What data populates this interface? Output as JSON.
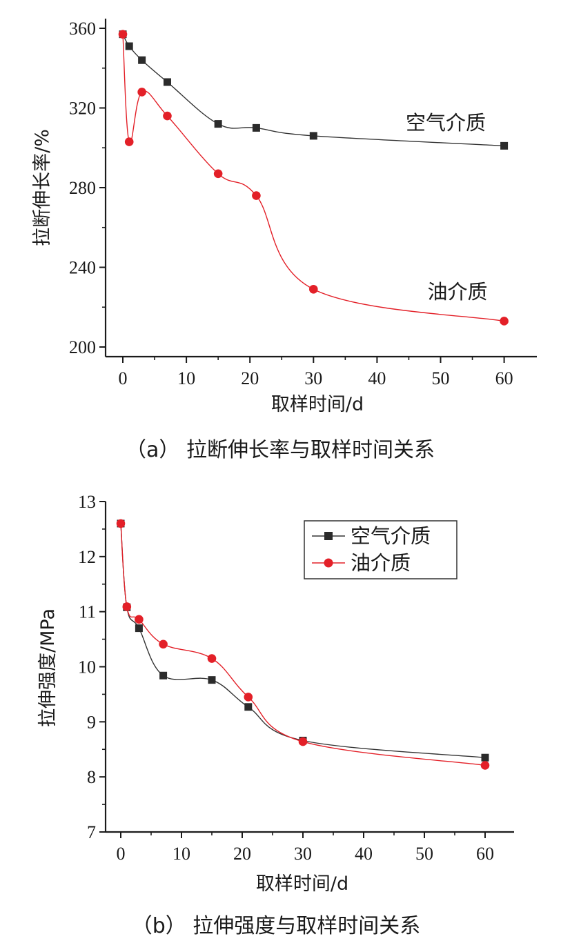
{
  "chart_data": [
    {
      "type": "line",
      "x": [
        0,
        1,
        3,
        7,
        15,
        21,
        30,
        60
      ],
      "xlabel": "取样时间/d",
      "ylabel": "拉断伸长率/%",
      "xlim": [
        -2,
        65
      ],
      "ylim": [
        195,
        363
      ],
      "xticks": [
        0,
        10,
        20,
        30,
        40,
        50,
        60
      ],
      "yticks": [
        200,
        240,
        280,
        320,
        360
      ],
      "series": [
        {
          "name": "空气介质",
          "marker": "square",
          "color": "#333333",
          "values": [
            357,
            351,
            344,
            333,
            312,
            310,
            306,
            301
          ]
        },
        {
          "name": "油介质",
          "marker": "circle",
          "color": "#e32028",
          "values": [
            357,
            303,
            328,
            316,
            287,
            276,
            229,
            213
          ]
        }
      ],
      "annotations": [
        "空气介质",
        "油介质"
      ],
      "caption": "（a） 拉断伸长率与取样时间关系"
    },
    {
      "type": "line",
      "x": [
        0,
        1,
        3,
        7,
        15,
        21,
        30,
        60
      ],
      "xlabel": "取样时间/d",
      "ylabel": "拉伸强度/MPa",
      "xlim": [
        -2,
        65
      ],
      "ylim": [
        7,
        13
      ],
      "xticks": [
        0,
        10,
        20,
        30,
        40,
        50,
        60
      ],
      "yticks": [
        7,
        8,
        9,
        10,
        11,
        12,
        13
      ],
      "legend": "top-right",
      "series": [
        {
          "name": "空气介质",
          "marker": "square",
          "color": "#333333",
          "values": [
            12.6,
            11.08,
            10.7,
            9.84,
            9.76,
            9.27,
            8.66,
            8.35
          ]
        },
        {
          "name": "油介质",
          "marker": "circle",
          "color": "#e32028",
          "values": [
            12.6,
            11.09,
            10.86,
            10.41,
            10.15,
            9.45,
            8.64,
            8.21
          ]
        }
      ],
      "caption": "（b） 拉伸强度与取样时间关系"
    }
  ]
}
